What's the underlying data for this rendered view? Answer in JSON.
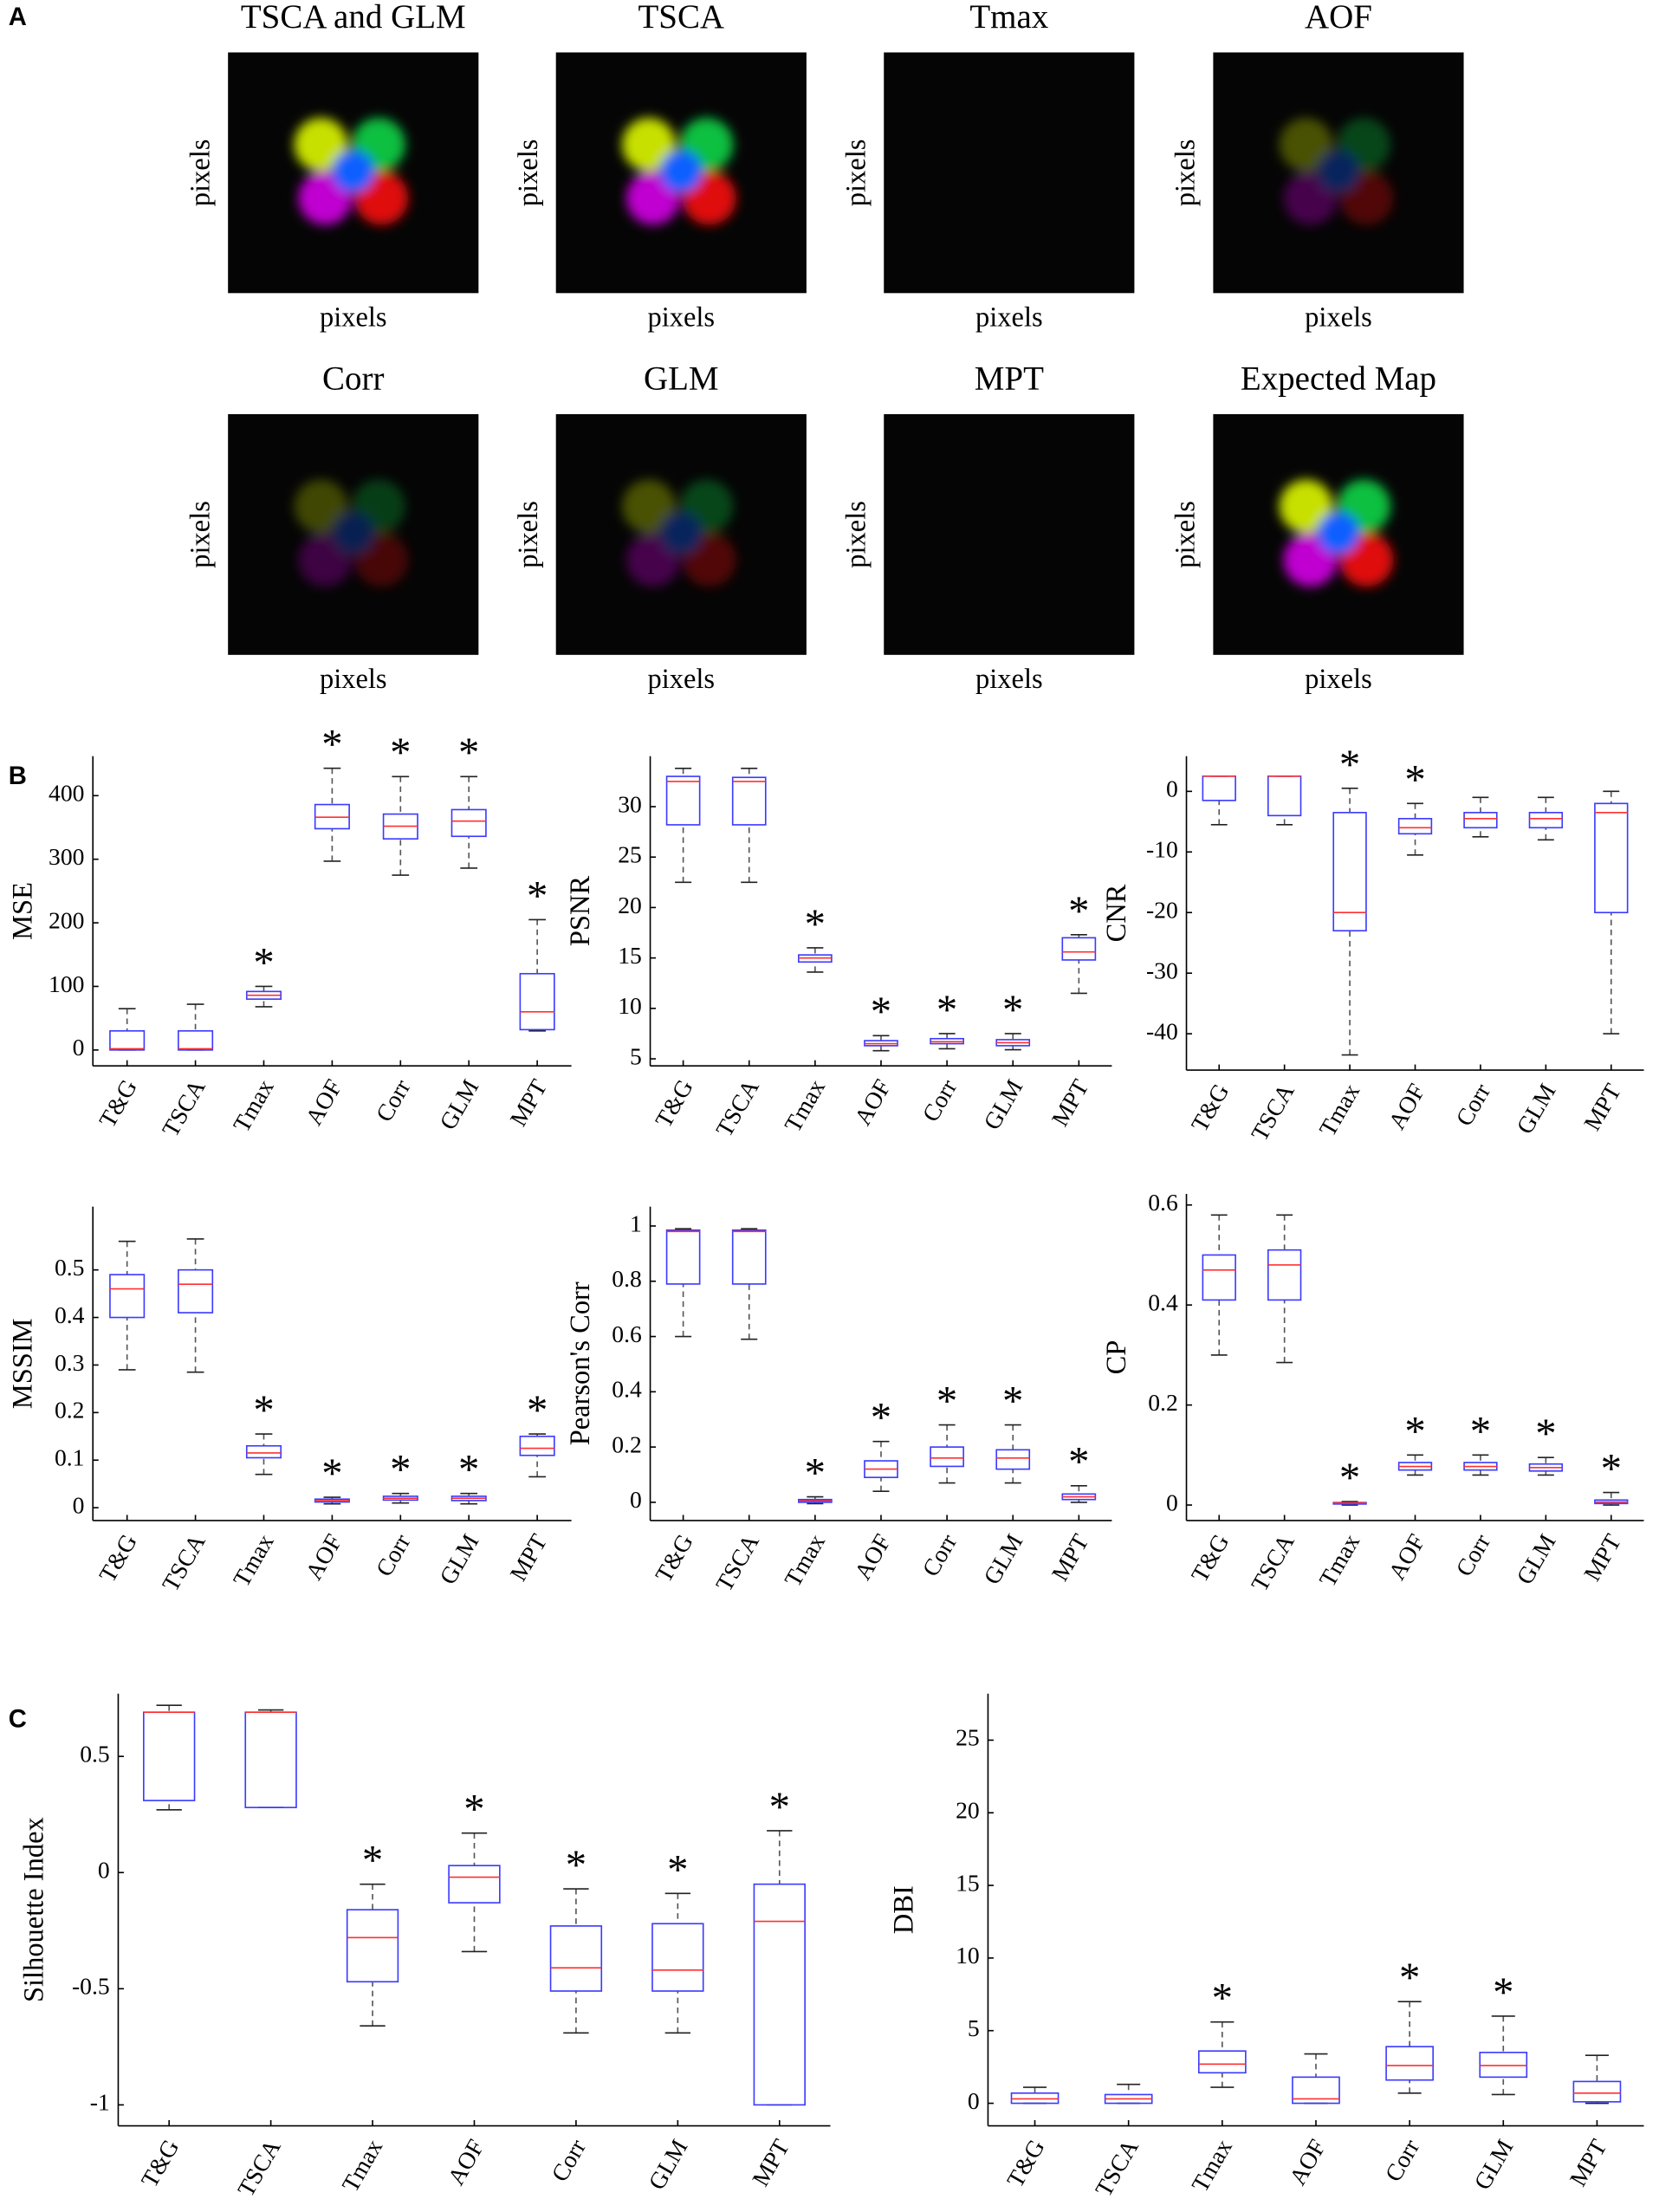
{
  "panel_labels": [
    "A",
    "B",
    "C"
  ],
  "maps": [
    {
      "title": "TSCA and GLM",
      "xlabel": "pixels",
      "ylabel": "pixels"
    },
    {
      "title": "TSCA",
      "xlabel": "pixels",
      "ylabel": "pixels"
    },
    {
      "title": "Tmax",
      "xlabel": "pixels",
      "ylabel": "pixels"
    },
    {
      "title": "AOF",
      "xlabel": "pixels",
      "ylabel": "pixels"
    },
    {
      "title": "Corr",
      "xlabel": "pixels",
      "ylabel": "pixels"
    },
    {
      "title": "GLM",
      "xlabel": "pixels",
      "ylabel": "pixels"
    },
    {
      "title": "MPT",
      "xlabel": "pixels",
      "ylabel": "pixels"
    },
    {
      "title": "Expected Map",
      "xlabel": "pixels",
      "ylabel": "pixels"
    }
  ],
  "chart_data": [
    {
      "type": "box",
      "ylabel": "MSE",
      "categories": [
        "T&G",
        "TSCA",
        "Tmax",
        "AOF",
        "Corr",
        "GLM",
        "MPT"
      ],
      "whisker_low": [
        0,
        0,
        68,
        297,
        275,
        286,
        30
      ],
      "q1": [
        0,
        0,
        80,
        348,
        332,
        336,
        32
      ],
      "median": [
        2,
        2,
        86,
        366,
        352,
        360,
        60
      ],
      "q3": [
        30,
        30,
        92,
        386,
        371,
        378,
        120
      ],
      "whisker_high": [
        65,
        72,
        100,
        443,
        430,
        430,
        205
      ],
      "markers": [
        null,
        null,
        "*",
        "*",
        "*",
        "*",
        "*"
      ],
      "ylim": [
        -25,
        462
      ],
      "yticks": [
        0,
        100,
        200,
        300,
        400
      ],
      "box_color": "#3b3bff",
      "median_color": "#ff3030"
    },
    {
      "type": "box",
      "ylabel": "PSNR",
      "categories": [
        "T&G",
        "TSCA",
        "Tmax",
        "AOF",
        "Corr",
        "GLM",
        "MPT"
      ],
      "whisker_low": [
        22.5,
        22.5,
        13.6,
        5.8,
        6,
        5.9,
        11.5
      ],
      "q1": [
        28.2,
        28.2,
        14.6,
        6.3,
        6.5,
        6.3,
        14.8
      ],
      "median": [
        32.5,
        32.5,
        15,
        6.5,
        6.7,
        6.6,
        15.6
      ],
      "q3": [
        33,
        32.9,
        15.3,
        6.8,
        7,
        6.9,
        17
      ],
      "whisker_high": [
        33.8,
        33.8,
        16,
        7.3,
        7.5,
        7.5,
        17.3
      ],
      "markers": [
        null,
        null,
        "*",
        "*",
        "*",
        "*",
        "*"
      ],
      "ylim": [
        4.3,
        35
      ],
      "yticks": [
        5,
        10,
        15,
        20,
        25,
        30
      ],
      "box_color": "#3b3bff",
      "median_color": "#ff3030"
    },
    {
      "type": "box",
      "ylabel": "CNR",
      "categories": [
        "T&G",
        "TSCA",
        "Tmax",
        "AOF",
        "Corr",
        "GLM",
        "MPT"
      ],
      "whisker_low": [
        -5.5,
        -5.5,
        -43.5,
        -10.5,
        -7.5,
        -8,
        -40
      ],
      "q1": [
        -1.5,
        -4,
        -23,
        -7,
        -6,
        -6,
        -20
      ],
      "median": [
        2.5,
        2.5,
        -20,
        -6,
        -4.5,
        -4.5,
        -3.5
      ],
      "q3": [
        2.5,
        2.5,
        -3.5,
        -4.5,
        -3.5,
        -3.5,
        -2
      ],
      "whisker_high": [
        2.5,
        2.5,
        0.5,
        -2,
        -1,
        -1,
        0
      ],
      "markers": [
        null,
        null,
        "*",
        "*",
        null,
        null,
        null
      ],
      "ylim": [
        -46,
        5.8
      ],
      "yticks": [
        -40,
        -30,
        -20,
        -10,
        0
      ],
      "box_color": "#3b3bff",
      "median_color": "#ff3030"
    },
    {
      "type": "box",
      "ylabel": "MSSIM",
      "categories": [
        "T&G",
        "TSCA",
        "Tmax",
        "AOF",
        "Corr",
        "GLM",
        "MPT"
      ],
      "whisker_low": [
        0.29,
        0.285,
        0.07,
        0.008,
        0.01,
        0.008,
        0.065
      ],
      "q1": [
        0.4,
        0.41,
        0.105,
        0.012,
        0.016,
        0.015,
        0.11
      ],
      "median": [
        0.46,
        0.47,
        0.115,
        0.015,
        0.02,
        0.02,
        0.125
      ],
      "q3": [
        0.49,
        0.5,
        0.13,
        0.018,
        0.024,
        0.024,
        0.15
      ],
      "whisker_high": [
        0.56,
        0.565,
        0.155,
        0.022,
        0.03,
        0.03,
        0.155
      ],
      "markers": [
        null,
        null,
        "*",
        "*",
        "*",
        "*",
        "*"
      ],
      "ylim": [
        -0.027,
        0.633
      ],
      "yticks": [
        0,
        0.1,
        0.2,
        0.3,
        0.4,
        0.5
      ],
      "box_color": "#3b3bff",
      "median_color": "#ff3030"
    },
    {
      "type": "box",
      "ylabel": "Pearson's Corr",
      "categories": [
        "T&G",
        "TSCA",
        "Tmax",
        "AOF",
        "Corr",
        "GLM",
        "MPT"
      ],
      "whisker_low": [
        0.6,
        0.59,
        -0.005,
        0.04,
        0.07,
        0.07,
        0
      ],
      "q1": [
        0.79,
        0.79,
        0,
        0.09,
        0.13,
        0.12,
        0.01
      ],
      "median": [
        0.98,
        0.98,
        0.005,
        0.12,
        0.16,
        0.16,
        0.02
      ],
      "q3": [
        0.985,
        0.985,
        0.01,
        0.15,
        0.2,
        0.19,
        0.03
      ],
      "whisker_high": [
        0.99,
        0.99,
        0.02,
        0.22,
        0.28,
        0.28,
        0.06
      ],
      "markers": [
        null,
        null,
        "*",
        "*",
        "*",
        "*",
        "*"
      ],
      "ylim": [
        -0.066,
        1.07
      ],
      "yticks": [
        0,
        0.2,
        0.4,
        0.6,
        0.8,
        1
      ],
      "box_color": "#3b3bff",
      "median_color": "#ff3030"
    },
    {
      "type": "box",
      "ylabel": "CP",
      "categories": [
        "T&G",
        "TSCA",
        "Tmax",
        "AOF",
        "Corr",
        "GLM",
        "MPT"
      ],
      "whisker_low": [
        0.3,
        0.285,
        0,
        0.06,
        0.06,
        0.06,
        0
      ],
      "q1": [
        0.41,
        0.41,
        0.002,
        0.07,
        0.07,
        0.068,
        0.003
      ],
      "median": [
        0.47,
        0.48,
        0.004,
        0.077,
        0.077,
        0.075,
        0.006
      ],
      "q3": [
        0.5,
        0.51,
        0.005,
        0.085,
        0.085,
        0.082,
        0.01
      ],
      "whisker_high": [
        0.58,
        0.58,
        0.007,
        0.1,
        0.1,
        0.095,
        0.025
      ],
      "markers": [
        null,
        null,
        "*",
        "*",
        "*",
        "*",
        "*"
      ],
      "ylim": [
        -0.031,
        0.622
      ],
      "yticks": [
        0,
        0.2,
        0.4,
        0.6
      ],
      "box_color": "#3b3bff",
      "median_color": "#ff3030"
    },
    {
      "type": "box",
      "ylabel": "Silhouette Index",
      "categories": [
        "T&G",
        "TSCA",
        "Tmax",
        "AOF",
        "Corr",
        "GLM",
        "MPT"
      ],
      "whisker_low": [
        0.27,
        0.28,
        -0.66,
        -0.34,
        -0.69,
        -0.69,
        -1
      ],
      "q1": [
        0.31,
        0.28,
        -0.47,
        -0.13,
        -0.51,
        -0.51,
        -1
      ],
      "median": [
        0.69,
        0.69,
        -0.28,
        -0.02,
        -0.41,
        -0.42,
        -0.21
      ],
      "q3": [
        0.69,
        0.69,
        -0.16,
        0.03,
        -0.23,
        -0.22,
        -0.05
      ],
      "whisker_high": [
        0.72,
        0.7,
        -0.05,
        0.17,
        -0.07,
        -0.09,
        0.18
      ],
      "markers": [
        null,
        null,
        "*",
        "*",
        "*",
        "*",
        "*"
      ],
      "ylim": [
        -1.09,
        0.77
      ],
      "yticks": [
        -1,
        -0.5,
        0,
        0.5
      ],
      "box_color": "#3b3bff",
      "median_color": "#ff3030"
    },
    {
      "type": "box",
      "ylabel": "DBI",
      "categories": [
        "T&G",
        "TSCA",
        "Tmax",
        "AOF",
        "Corr",
        "GLM",
        "MPT"
      ],
      "whisker_low": [
        0,
        0,
        1.1,
        0,
        0.7,
        0.6,
        0
      ],
      "q1": [
        0,
        0,
        2.1,
        0,
        1.6,
        1.8,
        0.1
      ],
      "median": [
        0.3,
        0.3,
        2.7,
        0.3,
        2.6,
        2.6,
        0.7
      ],
      "q3": [
        0.7,
        0.6,
        3.6,
        1.8,
        3.9,
        3.5,
        1.5
      ],
      "whisker_high": [
        1.1,
        1.3,
        5.6,
        3.4,
        7,
        6,
        3.3
      ],
      "markers": [
        null,
        null,
        "*",
        null,
        "*",
        "*",
        null
      ],
      "ylim": [
        -1.55,
        28.2
      ],
      "yticks": [
        0,
        5,
        10,
        15,
        20,
        25
      ],
      "box_color": "#3b3bff",
      "median_color": "#ff3030"
    }
  ]
}
